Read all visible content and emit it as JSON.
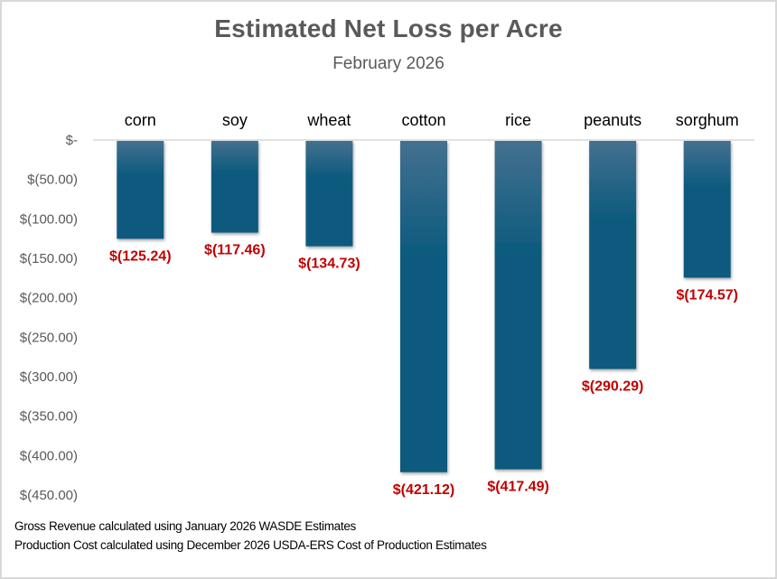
{
  "chart_data": {
    "type": "bar",
    "title": "Estimated Net Loss per Acre",
    "subtitle": "February 2026",
    "categories": [
      "corn",
      "soy",
      "wheat",
      "cotton",
      "rice",
      "peanuts",
      "sorghum"
    ],
    "values": [
      -125.24,
      -117.46,
      -134.73,
      -421.12,
      -417.49,
      -290.29,
      -174.57
    ],
    "data_labels": [
      "$(125.24)",
      "$(117.46)",
      "$(134.73)",
      "$(421.12)",
      "$(417.49)",
      "$(290.29)",
      "$(174.57)"
    ],
    "ylim": [
      -450,
      0
    ],
    "yticks": [
      0,
      -50,
      -100,
      -150,
      -200,
      -250,
      -300,
      -350,
      -400,
      -450
    ],
    "ytick_labels": [
      "$-",
      "$(50.00)",
      "$(100.00)",
      "$(150.00)",
      "$(200.00)",
      "$(250.00)",
      "$(300.00)",
      "$(350.00)",
      "$(400.00)",
      "$(450.00)"
    ],
    "xlabel": "",
    "ylabel": "",
    "category_axis_position": "top",
    "grid": false,
    "legend": "none",
    "colors": {
      "bar_top": "#44708f",
      "bar_bottom": "#0b5a7e",
      "data_label": "#c00000",
      "axis_text": "#595959",
      "category_text": "#000000",
      "axis_line": "#d9d9d9"
    }
  },
  "footnotes": [
    "Gross Revenue calculated using January 2026 WASDE Estimates",
    "Production Cost calculated using December 2026 USDA-ERS Cost of Production Estimates"
  ]
}
